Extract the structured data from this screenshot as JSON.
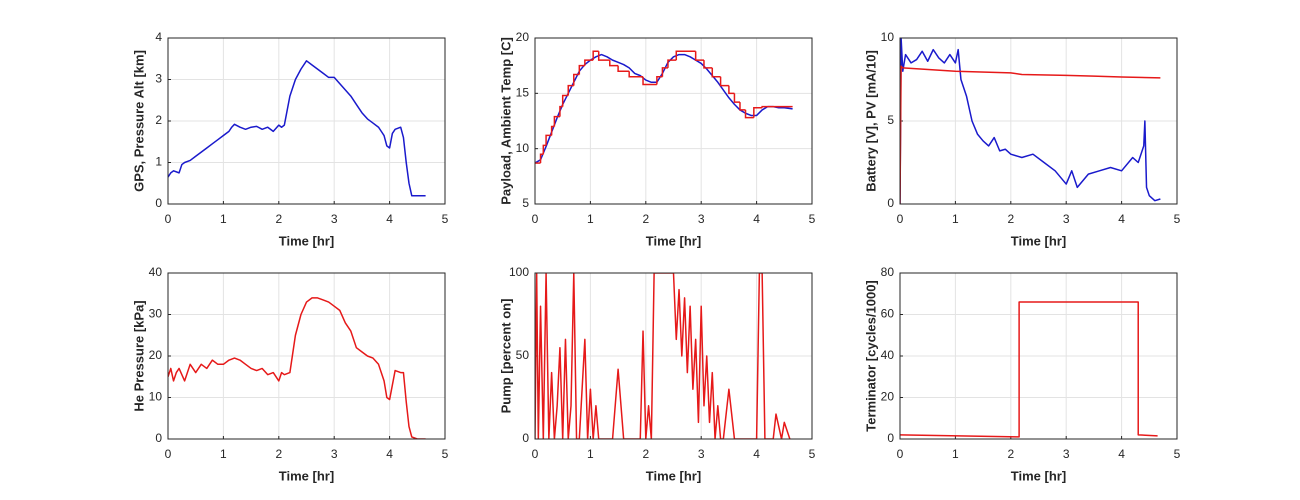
{
  "chart_data": [
    {
      "type": "line",
      "xlabel": "Time [hr]",
      "ylabel": "GPS, Pressure Alt [km]",
      "xlim": [
        0,
        5
      ],
      "xticks": [
        0,
        1,
        2,
        3,
        4,
        5
      ],
      "ylim": [
        0,
        4
      ],
      "yticks": [
        0,
        1,
        2,
        3,
        4
      ],
      "grid": true,
      "series": [
        {
          "color": "#1a1acc",
          "x": [
            0,
            0.05,
            0.1,
            0.2,
            0.25,
            0.3,
            0.4,
            0.5,
            0.6,
            0.7,
            0.8,
            0.9,
            1.0,
            1.1,
            1.15,
            1.2,
            1.3,
            1.4,
            1.5,
            1.6,
            1.7,
            1.8,
            1.9,
            2.0,
            2.05,
            2.1,
            2.2,
            2.3,
            2.4,
            2.5,
            2.6,
            2.7,
            2.8,
            2.9,
            3.0,
            3.1,
            3.2,
            3.3,
            3.4,
            3.5,
            3.6,
            3.7,
            3.8,
            3.9,
            3.95,
            4.0,
            4.05,
            4.1,
            4.2,
            4.25,
            4.3,
            4.35,
            4.4,
            4.5,
            4.65
          ],
          "values": [
            0.65,
            0.75,
            0.8,
            0.75,
            0.95,
            1.0,
            1.05,
            1.15,
            1.25,
            1.35,
            1.45,
            1.55,
            1.65,
            1.75,
            1.85,
            1.92,
            1.85,
            1.8,
            1.85,
            1.87,
            1.8,
            1.85,
            1.75,
            1.9,
            1.85,
            1.9,
            2.6,
            3.0,
            3.25,
            3.45,
            3.35,
            3.25,
            3.15,
            3.05,
            3.05,
            2.9,
            2.75,
            2.6,
            2.4,
            2.2,
            2.05,
            1.95,
            1.85,
            1.65,
            1.4,
            1.35,
            1.7,
            1.8,
            1.85,
            1.6,
            1.0,
            0.5,
            0.2,
            0.2,
            0.2
          ]
        }
      ]
    },
    {
      "type": "line",
      "xlabel": "Time [hr]",
      "ylabel": "Payload, Ambient Temp [C]",
      "xlim": [
        0,
        5
      ],
      "xticks": [
        0,
        1,
        2,
        3,
        4,
        5
      ],
      "ylim": [
        5,
        20
      ],
      "yticks": [
        5,
        10,
        15,
        20
      ],
      "grid": true,
      "series": [
        {
          "color": "#1a1acc",
          "x": [
            0,
            0.1,
            0.2,
            0.3,
            0.4,
            0.5,
            0.6,
            0.7,
            0.8,
            0.9,
            1.0,
            1.1,
            1.2,
            1.3,
            1.4,
            1.5,
            1.6,
            1.7,
            1.8,
            1.9,
            2.0,
            2.1,
            2.2,
            2.3,
            2.4,
            2.5,
            2.6,
            2.7,
            2.8,
            2.9,
            3.0,
            3.1,
            3.2,
            3.3,
            3.4,
            3.5,
            3.6,
            3.7,
            3.8,
            3.9,
            4.0,
            4.1,
            4.2,
            4.3,
            4.4,
            4.5,
            4.65
          ],
          "values": [
            8.7,
            9.0,
            10.2,
            11.5,
            12.8,
            14.0,
            15.0,
            16.0,
            17.0,
            17.6,
            18.0,
            18.3,
            18.5,
            18.3,
            18.0,
            17.8,
            17.6,
            17.3,
            16.8,
            16.6,
            16.2,
            16.0,
            16.0,
            16.8,
            17.8,
            18.3,
            18.5,
            18.5,
            18.3,
            18.0,
            17.7,
            17.2,
            16.6,
            16.0,
            15.3,
            14.6,
            14.0,
            13.5,
            13.2,
            13.0,
            13.0,
            13.5,
            13.8,
            13.8,
            13.7,
            13.7,
            13.6
          ]
        },
        {
          "color": "#e61919",
          "step": true,
          "x": [
            0,
            0.1,
            0.15,
            0.2,
            0.3,
            0.35,
            0.45,
            0.5,
            0.6,
            0.7,
            0.8,
            0.9,
            1.05,
            1.15,
            1.35,
            1.5,
            1.7,
            1.95,
            2.2,
            2.3,
            2.4,
            2.55,
            2.9,
            3.05,
            3.2,
            3.35,
            3.5,
            3.6,
            3.7,
            3.8,
            3.95,
            4.1,
            4.65
          ],
          "values": [
            8.7,
            9.5,
            10.3,
            11.2,
            12.0,
            12.9,
            13.8,
            14.8,
            15.7,
            16.7,
            17.5,
            18.0,
            18.8,
            18.0,
            17.5,
            17.0,
            16.5,
            15.8,
            16.5,
            17.3,
            18.0,
            18.8,
            18.0,
            17.3,
            16.5,
            15.7,
            15.0,
            14.2,
            13.5,
            12.8,
            13.7,
            13.8,
            13.8
          ]
        }
      ]
    },
    {
      "type": "line",
      "xlabel": "Time [hr]",
      "ylabel": "Battery [V], PV [mA/10]",
      "xlim": [
        0,
        5
      ],
      "xticks": [
        0,
        1,
        2,
        3,
        4,
        5
      ],
      "ylim": [
        0,
        10
      ],
      "yticks": [
        0,
        5,
        10
      ],
      "grid": true,
      "series": [
        {
          "color": "#1a1acc",
          "x": [
            0,
            0.02,
            0.05,
            0.1,
            0.2,
            0.3,
            0.4,
            0.5,
            0.6,
            0.7,
            0.8,
            0.9,
            1.0,
            1.05,
            1.1,
            1.2,
            1.3,
            1.4,
            1.5,
            1.6,
            1.7,
            1.8,
            1.9,
            2.0,
            2.2,
            2.4,
            2.6,
            2.8,
            3.0,
            3.1,
            3.2,
            3.4,
            3.6,
            3.8,
            4.0,
            4.2,
            4.3,
            4.4,
            4.42,
            4.45,
            4.5,
            4.6,
            4.7
          ],
          "values": [
            0,
            10,
            8,
            9,
            8.5,
            8.7,
            9.2,
            8.6,
            9.3,
            8.8,
            8.5,
            9.0,
            8.5,
            9.3,
            7.5,
            6.5,
            5.0,
            4.2,
            3.8,
            3.5,
            4.0,
            3.2,
            3.3,
            3.0,
            2.8,
            3.0,
            2.5,
            2.0,
            1.2,
            2.0,
            1.0,
            1.8,
            2.0,
            2.2,
            2.0,
            2.8,
            2.5,
            3.5,
            5.0,
            1.0,
            0.5,
            0.2,
            0.3
          ]
        },
        {
          "color": "#e61919",
          "x": [
            0,
            0.02,
            0.05,
            1,
            2,
            2.2,
            3,
            3.5,
            4,
            4.7
          ],
          "values": [
            0,
            8.3,
            8.2,
            8.0,
            7.9,
            7.8,
            7.75,
            7.7,
            7.65,
            7.6
          ]
        }
      ]
    },
    {
      "type": "line",
      "xlabel": "Time [hr]",
      "ylabel": "He Pressure [kPa]",
      "xlim": [
        0,
        5
      ],
      "xticks": [
        0,
        1,
        2,
        3,
        4,
        5
      ],
      "ylim": [
        0,
        40
      ],
      "yticks": [
        0,
        10,
        20,
        30,
        40
      ],
      "grid": true,
      "series": [
        {
          "color": "#e61919",
          "x": [
            0,
            0.05,
            0.1,
            0.15,
            0.2,
            0.3,
            0.4,
            0.5,
            0.6,
            0.7,
            0.8,
            0.9,
            1.0,
            1.1,
            1.2,
            1.3,
            1.4,
            1.5,
            1.6,
            1.7,
            1.8,
            1.9,
            2.0,
            2.05,
            2.1,
            2.2,
            2.3,
            2.4,
            2.5,
            2.6,
            2.7,
            2.8,
            2.9,
            3.0,
            3.1,
            3.2,
            3.3,
            3.4,
            3.5,
            3.6,
            3.7,
            3.8,
            3.9,
            3.95,
            4.0,
            4.05,
            4.1,
            4.2,
            4.25,
            4.3,
            4.35,
            4.4,
            4.5,
            4.65
          ],
          "values": [
            15,
            17,
            14,
            16,
            17,
            14,
            18,
            16,
            18,
            17,
            19,
            18,
            18,
            19,
            19.5,
            19,
            18,
            17,
            16.5,
            17,
            15.5,
            16,
            14,
            16,
            15.5,
            16,
            25,
            30,
            33,
            34,
            34,
            33.5,
            33,
            32,
            31,
            28,
            26,
            22,
            21,
            20,
            19.5,
            18,
            14,
            10,
            9.5,
            13,
            16.5,
            16,
            16,
            9,
            3,
            0.5,
            0,
            0
          ]
        }
      ]
    },
    {
      "type": "line",
      "xlabel": "Time [hr]",
      "ylabel": "Pump [percent on]",
      "xlim": [
        0,
        5
      ],
      "xticks": [
        0,
        1,
        2,
        3,
        4,
        5
      ],
      "ylim": [
        0,
        100
      ],
      "yticks": [
        0,
        50,
        100
      ],
      "grid": true,
      "series": [
        {
          "color": "#e61919",
          "x": [
            0,
            0.03,
            0.06,
            0.1,
            0.15,
            0.2,
            0.25,
            0.3,
            0.35,
            0.4,
            0.45,
            0.5,
            0.55,
            0.6,
            0.65,
            0.7,
            0.75,
            0.8,
            0.9,
            0.95,
            1.0,
            1.05,
            1.1,
            1.15,
            1.2,
            1.4,
            1.5,
            1.6,
            1.8,
            1.9,
            1.95,
            2.0,
            2.05,
            2.1,
            2.15,
            2.2,
            2.5,
            2.55,
            2.6,
            2.65,
            2.7,
            2.75,
            2.8,
            2.85,
            2.9,
            2.95,
            3.0,
            3.05,
            3.1,
            3.15,
            3.2,
            3.25,
            3.3,
            3.35,
            3.4,
            3.5,
            3.6,
            3.7,
            4.0,
            4.05,
            4.1,
            4.15,
            4.3,
            4.35,
            4.45,
            4.5,
            4.6
          ],
          "values": [
            0,
            100,
            0,
            80,
            0,
            100,
            0,
            40,
            0,
            20,
            55,
            0,
            60,
            0,
            20,
            100,
            0,
            0,
            60,
            0,
            30,
            0,
            20,
            0,
            0,
            0,
            42,
            0,
            0,
            0,
            65,
            0,
            20,
            0,
            100,
            100,
            100,
            60,
            90,
            50,
            85,
            40,
            80,
            30,
            60,
            10,
            80,
            20,
            50,
            10,
            40,
            0,
            20,
            0,
            0,
            30,
            0,
            0,
            0,
            100,
            100,
            0,
            0,
            15,
            0,
            10,
            0
          ]
        }
      ]
    },
    {
      "type": "line",
      "xlabel": "Time [hr]",
      "ylabel": "Terminator [cycles/1000]",
      "xlim": [
        0,
        5
      ],
      "xticks": [
        0,
        1,
        2,
        3,
        4,
        5
      ],
      "ylim": [
        0,
        80
      ],
      "yticks": [
        0,
        20,
        40,
        60,
        80
      ],
      "grid": true,
      "series": [
        {
          "color": "#e61919",
          "x": [
            0,
            2.15,
            2.15,
            4.3,
            4.3,
            4.65
          ],
          "values": [
            2,
            1,
            66,
            66,
            2,
            1.5
          ]
        }
      ]
    }
  ]
}
